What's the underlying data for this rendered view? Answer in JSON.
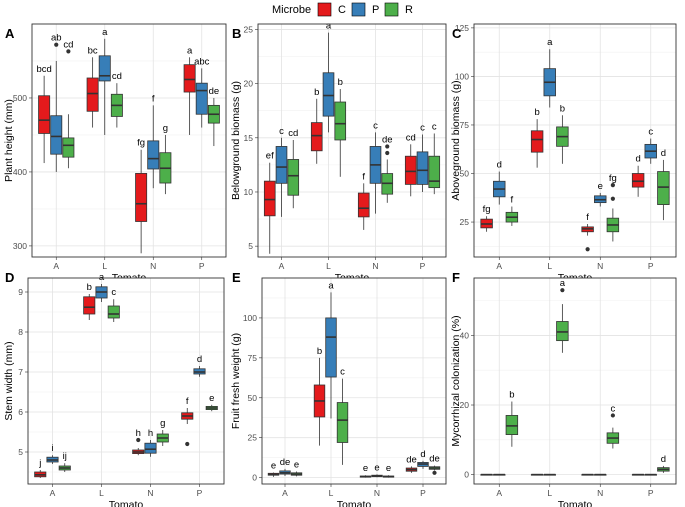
{
  "legend": {
    "title": "Microbe",
    "entries": [
      {
        "name": "C",
        "color": "#E41A1C"
      },
      {
        "name": "P",
        "color": "#377EB8"
      },
      {
        "name": "R",
        "color": "#4DAF4A"
      }
    ]
  },
  "chart_data": [
    {
      "type": "boxplot",
      "panel": "A",
      "xlabel": "Tomato",
      "ylabel": "Plant height (mm)",
      "categories": [
        "A",
        "L",
        "N",
        "P"
      ],
      "groups": [
        "C",
        "P",
        "R"
      ],
      "ylim": [
        285,
        600
      ],
      "yticks": [
        300,
        400,
        500
      ],
      "boxes": [
        {
          "cat": "A",
          "group": "C",
          "min": 412,
          "q1": 452,
          "median": 470,
          "q3": 503,
          "max": 530,
          "outliers": [],
          "label": "bcd"
        },
        {
          "cat": "A",
          "group": "P",
          "min": 400,
          "q1": 424,
          "median": 448,
          "q3": 476,
          "max": 550,
          "outliers": [
            572
          ],
          "label": "ab"
        },
        {
          "cat": "A",
          "group": "R",
          "min": 405,
          "q1": 420,
          "median": 436,
          "q3": 446,
          "max": 478,
          "outliers": [
            563
          ],
          "label": "cd"
        },
        {
          "cat": "L",
          "group": "C",
          "min": 460,
          "q1": 482,
          "median": 506,
          "q3": 527,
          "max": 555,
          "outliers": [],
          "label": "bc"
        },
        {
          "cat": "L",
          "group": "P",
          "min": 450,
          "q1": 523,
          "median": 530,
          "q3": 557,
          "max": 580,
          "outliers": [],
          "label": "a"
        },
        {
          "cat": "L",
          "group": "R",
          "min": 460,
          "q1": 475,
          "median": 490,
          "q3": 505,
          "max": 520,
          "outliers": [],
          "label": "cd"
        },
        {
          "cat": "N",
          "group": "C",
          "min": 290,
          "q1": 333,
          "median": 357,
          "q3": 398,
          "max": 430,
          "outliers": [],
          "label": "fg"
        },
        {
          "cat": "N",
          "group": "P",
          "min": 378,
          "q1": 404,
          "median": 418,
          "q3": 442,
          "max": 490,
          "outliers": [],
          "label": "f"
        },
        {
          "cat": "N",
          "group": "R",
          "min": 370,
          "q1": 385,
          "median": 405,
          "q3": 426,
          "max": 450,
          "outliers": [],
          "label": "g"
        },
        {
          "cat": "P",
          "group": "C",
          "min": 450,
          "q1": 508,
          "median": 525,
          "q3": 545,
          "max": 555,
          "outliers": [],
          "label": "a"
        },
        {
          "cat": "P",
          "group": "P",
          "min": 460,
          "q1": 478,
          "median": 510,
          "q3": 520,
          "max": 540,
          "outliers": [],
          "label": "abc"
        },
        {
          "cat": "P",
          "group": "R",
          "min": 435,
          "q1": 466,
          "median": 478,
          "q3": 490,
          "max": 500,
          "outliers": [],
          "label": "de"
        }
      ]
    },
    {
      "type": "boxplot",
      "panel": "B",
      "xlabel": "Tomato",
      "ylabel": "Belowground biomass (g)",
      "categories": [
        "A",
        "L",
        "N",
        "P"
      ],
      "groups": [
        "C",
        "P",
        "R"
      ],
      "ylim": [
        4,
        25.5
      ],
      "yticks": [
        5,
        10,
        15,
        20,
        25
      ],
      "boxes": [
        {
          "cat": "A",
          "group": "C",
          "min": 4.3,
          "q1": 7.8,
          "median": 9.3,
          "q3": 11.0,
          "max": 12.7,
          "outliers": [],
          "label": "ef"
        },
        {
          "cat": "A",
          "group": "P",
          "min": 7.7,
          "q1": 10.8,
          "median": 12.3,
          "q3": 14.2,
          "max": 15.0,
          "outliers": [],
          "label": "c"
        },
        {
          "cat": "A",
          "group": "R",
          "min": 8.5,
          "q1": 9.7,
          "median": 11.5,
          "q3": 13.0,
          "max": 14.8,
          "outliers": [],
          "label": "cd"
        },
        {
          "cat": "L",
          "group": "C",
          "min": 12.6,
          "q1": 13.8,
          "median": 15.2,
          "q3": 16.4,
          "max": 18.6,
          "outliers": [],
          "label": "b"
        },
        {
          "cat": "L",
          "group": "P",
          "min": 15.5,
          "q1": 17.0,
          "median": 18.9,
          "q3": 21.0,
          "max": 24.7,
          "outliers": [],
          "label": "a"
        },
        {
          "cat": "L",
          "group": "R",
          "min": 11.4,
          "q1": 14.8,
          "median": 16.3,
          "q3": 18.3,
          "max": 19.5,
          "outliers": [],
          "label": "b"
        },
        {
          "cat": "N",
          "group": "C",
          "min": 6.5,
          "q1": 7.7,
          "median": 8.5,
          "q3": 9.9,
          "max": 10.8,
          "outliers": [],
          "label": "f"
        },
        {
          "cat": "N",
          "group": "P",
          "min": 8.0,
          "q1": 10.8,
          "median": 12.5,
          "q3": 14.2,
          "max": 15.5,
          "outliers": [],
          "label": "c"
        },
        {
          "cat": "N",
          "group": "R",
          "min": 9.0,
          "q1": 9.8,
          "median": 10.8,
          "q3": 11.7,
          "max": 13.0,
          "outliers": [
            13.6,
            14.2
          ],
          "label": "de"
        },
        {
          "cat": "P",
          "group": "C",
          "min": 9.6,
          "q1": 10.7,
          "median": 11.9,
          "q3": 13.3,
          "max": 14.4,
          "outliers": [],
          "label": "cd"
        },
        {
          "cat": "P",
          "group": "P",
          "min": 10.0,
          "q1": 10.7,
          "median": 12.0,
          "q3": 13.7,
          "max": 15.3,
          "outliers": [],
          "label": "c"
        },
        {
          "cat": "P",
          "group": "R",
          "min": 9.8,
          "q1": 10.4,
          "median": 11.0,
          "q3": 13.3,
          "max": 15.4,
          "outliers": [],
          "label": "c"
        }
      ]
    },
    {
      "type": "boxplot",
      "panel": "C",
      "xlabel": "Tomato",
      "ylabel": "Aboveground biomass (g)",
      "categories": [
        "A",
        "L",
        "N",
        "P"
      ],
      "groups": [
        "C",
        "P",
        "R"
      ],
      "ylim": [
        7,
        127
      ],
      "yticks": [
        25,
        50,
        75,
        100,
        125
      ],
      "boxes": [
        {
          "cat": "A",
          "group": "C",
          "min": 20,
          "q1": 22,
          "median": 24,
          "q3": 26.5,
          "max": 28,
          "outliers": [],
          "label": "fg"
        },
        {
          "cat": "A",
          "group": "P",
          "min": 34,
          "q1": 38,
          "median": 42,
          "q3": 46,
          "max": 51,
          "outliers": [],
          "label": "d"
        },
        {
          "cat": "A",
          "group": "R",
          "min": 23,
          "q1": 25,
          "median": 27.5,
          "q3": 30,
          "max": 33,
          "outliers": [],
          "label": "f"
        },
        {
          "cat": "L",
          "group": "C",
          "min": 53,
          "q1": 61,
          "median": 67.5,
          "q3": 72,
          "max": 78,
          "outliers": [],
          "label": "b"
        },
        {
          "cat": "L",
          "group": "P",
          "min": 84,
          "q1": 90,
          "median": 97,
          "q3": 104,
          "max": 114,
          "outliers": [],
          "label": "a"
        },
        {
          "cat": "L",
          "group": "R",
          "min": 55,
          "q1": 64,
          "median": 69,
          "q3": 74,
          "max": 80,
          "outliers": [],
          "label": "b"
        },
        {
          "cat": "N",
          "group": "C",
          "min": 18,
          "q1": 20,
          "median": 21.5,
          "q3": 22.5,
          "max": 24,
          "outliers": [
            11
          ],
          "label": "f"
        },
        {
          "cat": "N",
          "group": "P",
          "min": 33,
          "q1": 35,
          "median": 36.5,
          "q3": 38.5,
          "max": 40,
          "outliers": [],
          "label": "e"
        },
        {
          "cat": "N",
          "group": "R",
          "min": 15,
          "q1": 20,
          "median": 23.5,
          "q3": 27,
          "max": 32,
          "outliers": [
            37,
            44
          ],
          "label": "fg"
        },
        {
          "cat": "P",
          "group": "C",
          "min": 38,
          "q1": 43,
          "median": 46,
          "q3": 50,
          "max": 54,
          "outliers": [],
          "label": "d"
        },
        {
          "cat": "P",
          "group": "P",
          "min": 55,
          "q1": 58,
          "median": 61.5,
          "q3": 65,
          "max": 68,
          "outliers": [],
          "label": "c"
        },
        {
          "cat": "P",
          "group": "R",
          "min": 26,
          "q1": 34,
          "median": 43,
          "q3": 51,
          "max": 57,
          "outliers": [],
          "label": "d"
        }
      ]
    },
    {
      "type": "boxplot",
      "panel": "D",
      "xlabel": "Tomato",
      "ylabel": "Stem width (mm)",
      "categories": [
        "A",
        "L",
        "N",
        "P"
      ],
      "groups": [
        "C",
        "P",
        "R"
      ],
      "ylim": [
        4.2,
        9.35
      ],
      "yticks": [
        5,
        6,
        7,
        8,
        9
      ],
      "boxes": [
        {
          "cat": "A",
          "group": "C",
          "min": 4.35,
          "q1": 4.38,
          "median": 4.43,
          "q3": 4.5,
          "max": 4.55,
          "outliers": [],
          "label": "j"
        },
        {
          "cat": "A",
          "group": "P",
          "min": 4.7,
          "q1": 4.75,
          "median": 4.8,
          "q3": 4.87,
          "max": 4.92,
          "outliers": [],
          "label": "i"
        },
        {
          "cat": "A",
          "group": "R",
          "min": 4.5,
          "q1": 4.55,
          "median": 4.6,
          "q3": 4.65,
          "max": 4.72,
          "outliers": [],
          "label": "ij"
        },
        {
          "cat": "L",
          "group": "C",
          "min": 8.3,
          "q1": 8.45,
          "median": 8.62,
          "q3": 8.88,
          "max": 8.95,
          "outliers": [],
          "label": "b"
        },
        {
          "cat": "L",
          "group": "P",
          "min": 8.75,
          "q1": 8.85,
          "median": 9.0,
          "q3": 9.13,
          "max": 9.2,
          "outliers": [],
          "label": "a"
        },
        {
          "cat": "L",
          "group": "R",
          "min": 8.25,
          "q1": 8.35,
          "median": 8.45,
          "q3": 8.65,
          "max": 8.82,
          "outliers": [],
          "label": "c"
        },
        {
          "cat": "N",
          "group": "C",
          "min": 4.92,
          "q1": 4.96,
          "median": 5.0,
          "q3": 5.05,
          "max": 5.1,
          "outliers": [
            5.3
          ],
          "label": "h"
        },
        {
          "cat": "N",
          "group": "P",
          "min": 4.88,
          "q1": 4.97,
          "median": 5.07,
          "q3": 5.22,
          "max": 5.3,
          "outliers": [],
          "label": "h"
        },
        {
          "cat": "N",
          "group": "R",
          "min": 5.15,
          "q1": 5.25,
          "median": 5.35,
          "q3": 5.45,
          "max": 5.55,
          "outliers": [],
          "label": "g"
        },
        {
          "cat": "P",
          "group": "C",
          "min": 5.7,
          "q1": 5.82,
          "median": 5.9,
          "q3": 5.98,
          "max": 6.1,
          "outliers": [
            5.2
          ],
          "label": "f"
        },
        {
          "cat": "P",
          "group": "P",
          "min": 6.88,
          "q1": 6.95,
          "median": 7.0,
          "q3": 7.08,
          "max": 7.15,
          "outliers": [],
          "label": "d"
        },
        {
          "cat": "P",
          "group": "R",
          "min": 6.02,
          "q1": 6.06,
          "median": 6.1,
          "q3": 6.14,
          "max": 6.18,
          "outliers": [],
          "label": "e"
        }
      ]
    },
    {
      "type": "boxplot",
      "panel": "E",
      "xlabel": "Tomato",
      "ylabel": "Fruit fresh weight (g)",
      "categories": [
        "A",
        "L",
        "N",
        "P"
      ],
      "groups": [
        "C",
        "P",
        "R"
      ],
      "ylim": [
        -4,
        125
      ],
      "yticks": [
        0,
        25,
        50,
        75,
        100
      ],
      "boxes": [
        {
          "cat": "A",
          "group": "C",
          "min": 0.5,
          "q1": 1.5,
          "median": 2,
          "q3": 2.7,
          "max": 3.2,
          "outliers": [],
          "label": "e"
        },
        {
          "cat": "A",
          "group": "P",
          "min": 1,
          "q1": 2.2,
          "median": 3,
          "q3": 4.2,
          "max": 5.5,
          "outliers": [],
          "label": "de"
        },
        {
          "cat": "A",
          "group": "R",
          "min": 0.8,
          "q1": 1.5,
          "median": 2.2,
          "q3": 3,
          "max": 3.8,
          "outliers": [],
          "label": "e"
        },
        {
          "cat": "L",
          "group": "C",
          "min": 20,
          "q1": 38,
          "median": 48,
          "q3": 58,
          "max": 75,
          "outliers": [],
          "label": "b"
        },
        {
          "cat": "L",
          "group": "P",
          "min": 37,
          "q1": 63,
          "median": 88,
          "q3": 100,
          "max": 116,
          "outliers": [],
          "label": "a"
        },
        {
          "cat": "L",
          "group": "R",
          "min": 8,
          "q1": 22,
          "median": 36,
          "q3": 47,
          "max": 62,
          "outliers": [],
          "label": "c"
        },
        {
          "cat": "N",
          "group": "C",
          "min": 0,
          "q1": 0.3,
          "median": 0.6,
          "q3": 1,
          "max": 1.5,
          "outliers": [],
          "label": "e"
        },
        {
          "cat": "N",
          "group": "P",
          "min": 0.2,
          "q1": 0.6,
          "median": 1,
          "q3": 1.5,
          "max": 2,
          "outliers": [],
          "label": "e"
        },
        {
          "cat": "N",
          "group": "R",
          "min": 0,
          "q1": 0.3,
          "median": 0.6,
          "q3": 1,
          "max": 1.5,
          "outliers": [],
          "label": "e"
        },
        {
          "cat": "P",
          "group": "C",
          "min": 3,
          "q1": 4,
          "median": 5,
          "q3": 6,
          "max": 7,
          "outliers": [],
          "label": "de"
        },
        {
          "cat": "P",
          "group": "P",
          "min": 5.5,
          "q1": 7,
          "median": 8.5,
          "q3": 9.5,
          "max": 10.5,
          "outliers": [],
          "label": "d"
        },
        {
          "cat": "P",
          "group": "R",
          "min": 4.5,
          "q1": 5.2,
          "median": 6,
          "q3": 6.8,
          "max": 7.5,
          "outliers": [
            3
          ],
          "label": "de"
        }
      ]
    },
    {
      "type": "boxplot",
      "panel": "F",
      "xlabel": "Tomato",
      "ylabel": "Mycorrhizal colonization (%)",
      "categories": [
        "A",
        "L",
        "N",
        "P"
      ],
      "groups": [
        "C",
        "P",
        "R"
      ],
      "ylim": [
        -2.7,
        56.5
      ],
      "yticks": [
        0,
        20,
        40
      ],
      "boxes": [
        {
          "cat": "A",
          "group": "C",
          "min": 0,
          "q1": 0,
          "median": 0,
          "q3": 0,
          "max": 0,
          "outliers": [],
          "label": ""
        },
        {
          "cat": "A",
          "group": "P",
          "min": 0,
          "q1": 0,
          "median": 0,
          "q3": 0,
          "max": 0,
          "outliers": [],
          "label": ""
        },
        {
          "cat": "A",
          "group": "R",
          "min": 8,
          "q1": 11.5,
          "median": 14,
          "q3": 17,
          "max": 21,
          "outliers": [],
          "label": "b"
        },
        {
          "cat": "L",
          "group": "C",
          "min": 0,
          "q1": 0,
          "median": 0,
          "q3": 0,
          "max": 0,
          "outliers": [],
          "label": ""
        },
        {
          "cat": "L",
          "group": "P",
          "min": 0,
          "q1": 0,
          "median": 0,
          "q3": 0,
          "max": 0,
          "outliers": [],
          "label": ""
        },
        {
          "cat": "L",
          "group": "R",
          "min": 35,
          "q1": 38.5,
          "median": 41,
          "q3": 44,
          "max": 49,
          "outliers": [
            53
          ],
          "label": "a"
        },
        {
          "cat": "N",
          "group": "C",
          "min": 0,
          "q1": 0,
          "median": 0,
          "q3": 0,
          "max": 0,
          "outliers": [],
          "label": ""
        },
        {
          "cat": "N",
          "group": "P",
          "min": 0,
          "q1": 0,
          "median": 0,
          "q3": 0,
          "max": 0,
          "outliers": [],
          "label": ""
        },
        {
          "cat": "N",
          "group": "R",
          "min": 7.5,
          "q1": 9,
          "median": 10.5,
          "q3": 12,
          "max": 13.5,
          "outliers": [
            17
          ],
          "label": "c"
        },
        {
          "cat": "P",
          "group": "C",
          "min": 0,
          "q1": 0,
          "median": 0,
          "q3": 0,
          "max": 0,
          "outliers": [],
          "label": ""
        },
        {
          "cat": "P",
          "group": "P",
          "min": 0,
          "q1": 0,
          "median": 0,
          "q3": 0,
          "max": 0,
          "outliers": [],
          "label": ""
        },
        {
          "cat": "P",
          "group": "R",
          "min": 0.5,
          "q1": 1,
          "median": 1.5,
          "q3": 2,
          "max": 2.5,
          "outliers": [],
          "label": "d"
        }
      ]
    }
  ]
}
